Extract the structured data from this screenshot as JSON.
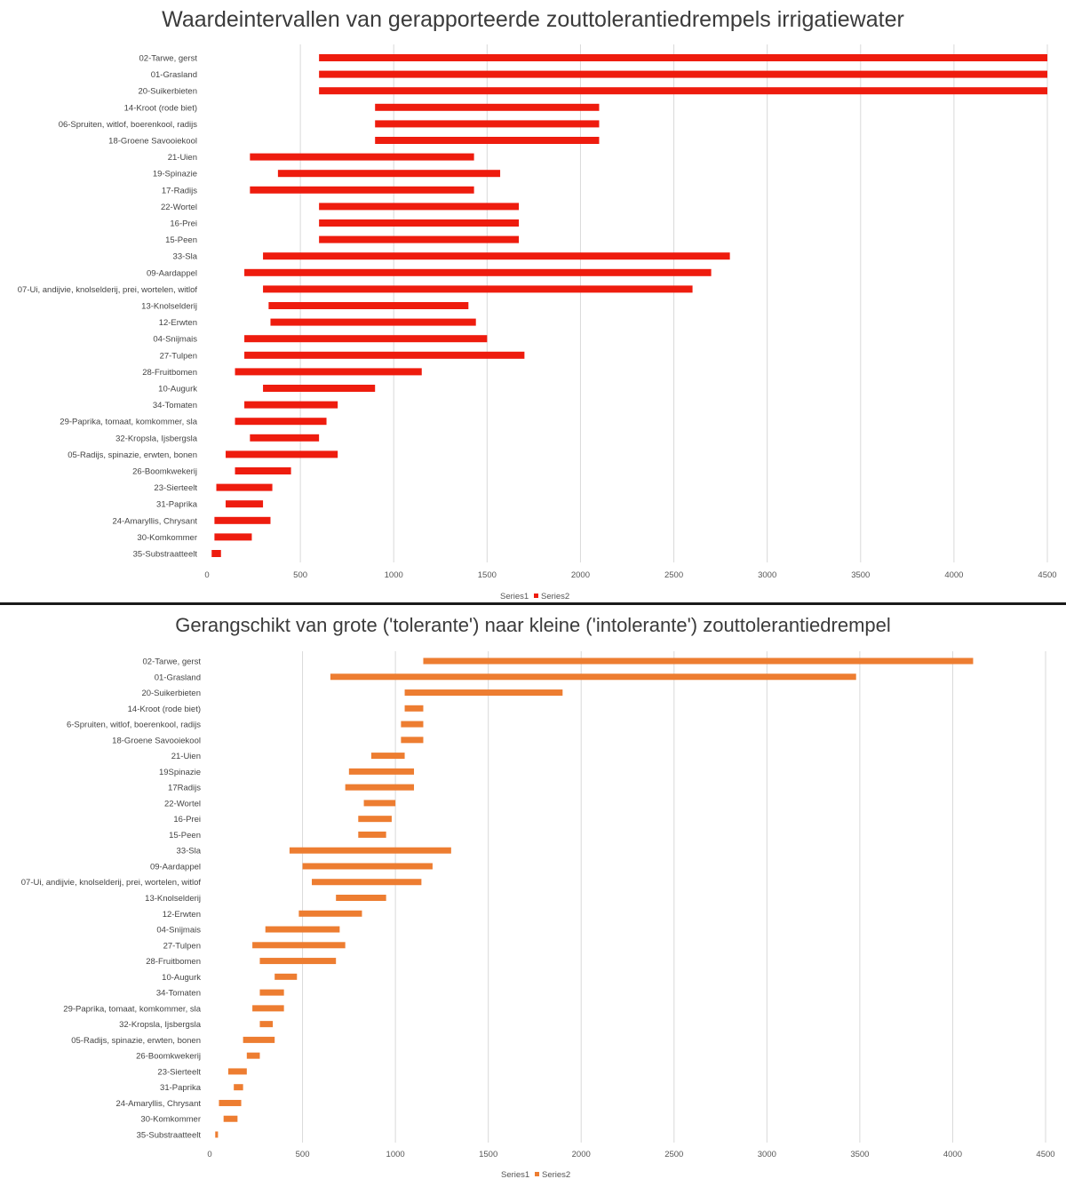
{
  "chart_data": [
    {
      "type": "bar",
      "orientation": "horizontal",
      "stacked_floating": true,
      "title": "Waardeintervallen van gerapporteerde zouttolerantiedrempels irrigatiewater",
      "xlim": [
        0,
        4500
      ],
      "xticks": [
        "0",
        "500",
        "1000",
        "1500",
        "2000",
        "2500",
        "3000",
        "3500",
        "4000",
        "4500"
      ],
      "grid": true,
      "legend_position": "bottom",
      "categories": [
        "02-Tarwe, gerst",
        "01-Grasland",
        "20-Suikerbieten",
        "14-Kroot (rode biet)",
        "06-Spruiten, witlof, boerenkool, radijs",
        "18-Groene Savooiekool",
        "21-Uien",
        "19-Spinazie",
        "17-Radijs",
        "22-Wortel",
        "16-Prei",
        "15-Peen",
        "33-Sla",
        "09-Aardappel",
        "07-Ui, andijvie, knolselderij, prei, wortelen, witlof",
        "13-Knolselderij",
        "12-Erwten",
        "04-Snijmais",
        "27-Tulpen",
        "28-Fruitbomen",
        "10-Augurk",
        "34-Tomaten",
        "29-Paprika, tomaat, komkommer, sla",
        "32-Kropsla, Ijsbergsla",
        "05-Radijs, spinazie, erwten, bonen",
        "26-Boomkwekerij",
        "23-Sierteelt",
        "31-Paprika",
        "24-Amaryllis, Chrysant",
        "30-Komkommer",
        "35-Substraatteelt"
      ],
      "series": [
        {
          "name": "Series1",
          "color": "#ffffff",
          "values": [
            600,
            600,
            600,
            900,
            900,
            900,
            230,
            380,
            230,
            600,
            600,
            600,
            300,
            200,
            300,
            330,
            340,
            200,
            200,
            150,
            300,
            200,
            150,
            230,
            100,
            150,
            50,
            100,
            40,
            40,
            25
          ]
        },
        {
          "name": "Series2",
          "color": "#ee1c0e",
          "values": [
            3900,
            3900,
            3900,
            1200,
            1200,
            1200,
            1200,
            1190,
            1200,
            1070,
            1070,
            1070,
            2500,
            2500,
            2300,
            1070,
            1100,
            1300,
            1500,
            1000,
            600,
            500,
            490,
            370,
            600,
            300,
            300,
            200,
            300,
            200,
            50
          ]
        }
      ]
    },
    {
      "type": "bar",
      "orientation": "horizontal",
      "stacked_floating": true,
      "title": "Gerangschikt van grote ('tolerante') naar kleine ('intolerante') zouttolerantiedrempel",
      "xlim": [
        0,
        4500
      ],
      "xticks": [
        "0",
        "500",
        "1000",
        "1500",
        "2000",
        "2500",
        "3000",
        "3500",
        "4000",
        "4500"
      ],
      "grid": true,
      "legend_position": "bottom",
      "categories": [
        "02-Tarwe, gerst",
        "01-Grasland",
        "20-Suikerbieten",
        "14-Kroot (rode biet)",
        "6-Spruiten, witlof, boerenkool, radijs",
        "18-Groene Savooiekool",
        "21-Uien",
        "19Spinazie",
        "17Radijs",
        "22-Wortel",
        "16-Prei",
        "15-Peen",
        "33-Sla",
        "09-Aardappel",
        "07-Ui, andijvie, knolselderij, prei, wortelen, witlof",
        "13-Knolselderij",
        "12-Erwten",
        "04-Snijmais",
        "27-Tulpen",
        "28-Fruitbomen",
        "10-Augurk",
        "34-Tomaten",
        "29-Paprika, tomaat, komkommer, sla",
        "32-Kropsla, Ijsbergsla",
        "05-Radijs, spinazie, erwten, bonen",
        "26-Boomkwekerij",
        "23-Sierteelt",
        "31-Paprika",
        "24-Amaryllis, Chrysant",
        "30-Komkommer",
        "35-Substraatteelt"
      ],
      "series": [
        {
          "name": "Series1",
          "color": "#ffffff",
          "values": [
            1150,
            650,
            1050,
            1050,
            1030,
            1030,
            870,
            750,
            730,
            830,
            800,
            800,
            430,
            500,
            550,
            680,
            480,
            300,
            230,
            270,
            350,
            270,
            230,
            270,
            180,
            200,
            100,
            130,
            50,
            75,
            30
          ]
        },
        {
          "name": "Series2",
          "color": "#ed7d31",
          "values": [
            2960,
            2830,
            850,
            100,
            120,
            120,
            180,
            350,
            370,
            170,
            180,
            150,
            870,
            700,
            590,
            270,
            340,
            400,
            500,
            410,
            120,
            130,
            170,
            70,
            170,
            70,
            100,
            50,
            120,
            75,
            15
          ]
        }
      ]
    }
  ]
}
